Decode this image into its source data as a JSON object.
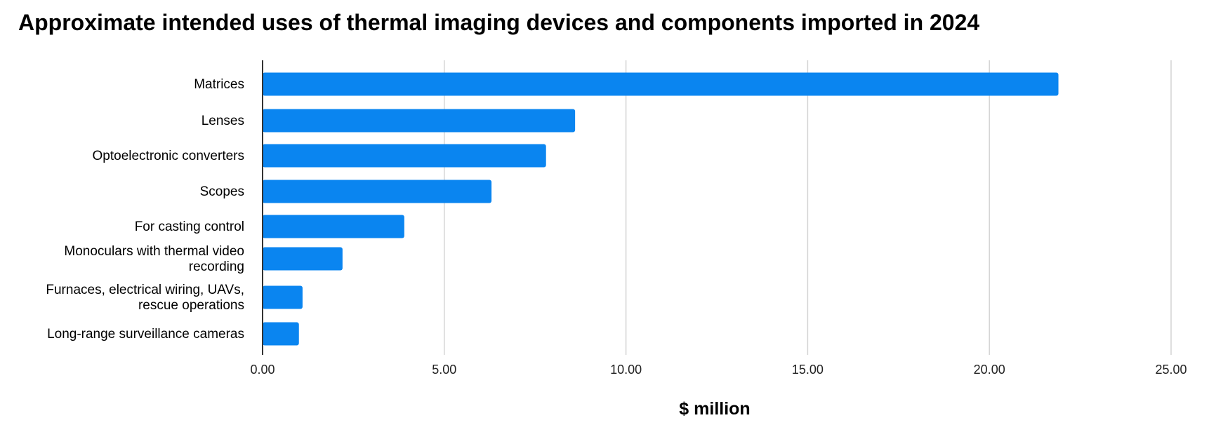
{
  "chart_data": {
    "type": "bar",
    "orientation": "horizontal",
    "title": "Approximate intended uses of thermal imaging devices and components imported in 2024",
    "xlabel": "$ million",
    "ylabel": "",
    "categories": [
      [
        "Matrices"
      ],
      [
        "Lenses"
      ],
      [
        "Optoelectronic converters"
      ],
      [
        "Scopes"
      ],
      [
        "For casting control"
      ],
      [
        "Monoculars with thermal video",
        "recording"
      ],
      [
        "Furnaces, electrical wiring, UAVs,",
        "rescue operations"
      ],
      [
        "Long-range surveillance cameras"
      ]
    ],
    "values": [
      21.9,
      8.6,
      7.8,
      6.3,
      3.9,
      2.2,
      1.1,
      1.0
    ],
    "xlim": [
      0,
      25
    ],
    "xticks": [
      "0.00",
      "5.00",
      "10.00",
      "15.00",
      "20.00",
      "25.00"
    ],
    "grid": "vertical",
    "legend": "none",
    "colors": {
      "bar": "#0a85f0",
      "grid": "#d4d4d4",
      "axis": "#333333"
    }
  }
}
